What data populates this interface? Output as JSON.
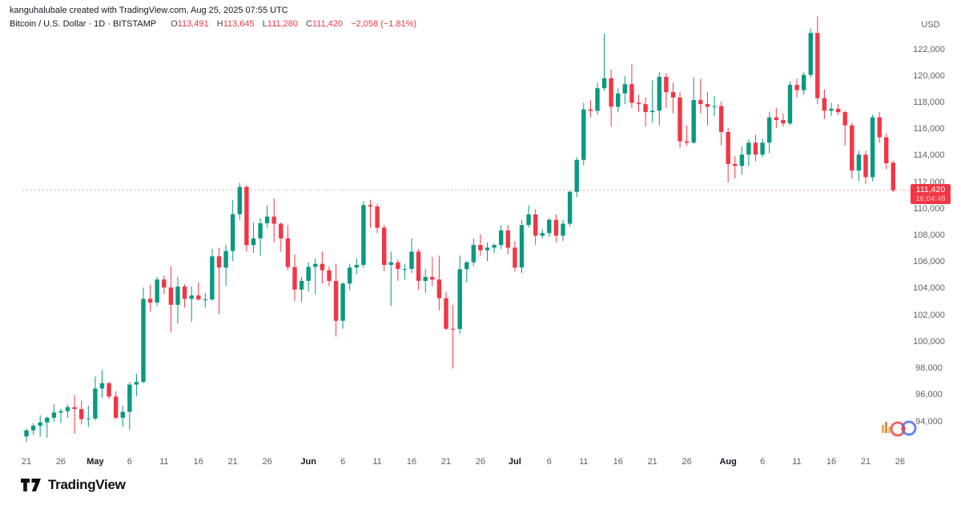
{
  "header": {
    "attribution": "kanguhalubale created with TradingView.com, Aug 25, 2025 07:55 UTC",
    "symbol": "Bitcoin / U.S. Dollar",
    "interval": "1D",
    "exchange": "BITSTAMP",
    "separator": "·"
  },
  "ohlc": {
    "open": {
      "label": "O",
      "value": "113,491"
    },
    "high": {
      "label": "H",
      "value": "113,645"
    },
    "low": {
      "label": "L",
      "value": "111,280"
    },
    "close": {
      "label": "C",
      "value": "111,420"
    },
    "change": "−2,058 (−1.81%)"
  },
  "price_scale": {
    "currency": "USD",
    "ticks": [
      {
        "label": "122,000",
        "value": 122000
      },
      {
        "label": "120,000",
        "value": 120000
      },
      {
        "label": "118,000",
        "value": 118000
      },
      {
        "label": "116,000",
        "value": 116000
      },
      {
        "label": "114,000",
        "value": 114000
      },
      {
        "label": "112,000",
        "value": 112000
      },
      {
        "label": "110,000",
        "value": 110000
      },
      {
        "label": "108,000",
        "value": 108000
      },
      {
        "label": "106,000",
        "value": 106000
      },
      {
        "label": "104,000",
        "value": 104000
      },
      {
        "label": "102,000",
        "value": 102000
      },
      {
        "label": "100,000",
        "value": 100000
      },
      {
        "label": "98,000",
        "value": 98000
      },
      {
        "label": "96,000",
        "value": 96000
      },
      {
        "label": "94,000",
        "value": 94000
      }
    ]
  },
  "time_scale": {
    "labels": [
      {
        "label": "21",
        "day": 0,
        "bold": false
      },
      {
        "label": "26",
        "day": 5,
        "bold": false
      },
      {
        "label": "May",
        "day": 10,
        "bold": true
      },
      {
        "label": "6",
        "day": 15,
        "bold": false
      },
      {
        "label": "11",
        "day": 20,
        "bold": false
      },
      {
        "label": "16",
        "day": 25,
        "bold": false
      },
      {
        "label": "21",
        "day": 30,
        "bold": false
      },
      {
        "label": "26",
        "day": 35,
        "bold": false
      },
      {
        "label": "Jun",
        "day": 41,
        "bold": true
      },
      {
        "label": "6",
        "day": 46,
        "bold": false
      },
      {
        "label": "11",
        "day": 51,
        "bold": false
      },
      {
        "label": "16",
        "day": 56,
        "bold": false
      },
      {
        "label": "21",
        "day": 61,
        "bold": false
      },
      {
        "label": "26",
        "day": 66,
        "bold": false
      },
      {
        "label": "Jul",
        "day": 71,
        "bold": true
      },
      {
        "label": "6",
        "day": 76,
        "bold": false
      },
      {
        "label": "11",
        "day": 81,
        "bold": false
      },
      {
        "label": "16",
        "day": 86,
        "bold": false
      },
      {
        "label": "21",
        "day": 91,
        "bold": false
      },
      {
        "label": "26",
        "day": 96,
        "bold": false
      },
      {
        "label": "Aug",
        "day": 102,
        "bold": true
      },
      {
        "label": "6",
        "day": 107,
        "bold": false
      },
      {
        "label": "11",
        "day": 112,
        "bold": false
      },
      {
        "label": "16",
        "day": 117,
        "bold": false
      },
      {
        "label": "21",
        "day": 122,
        "bold": false
      },
      {
        "label": "26",
        "day": 127,
        "bold": false
      }
    ]
  },
  "price_badge": {
    "price": "111,420",
    "countdown": "16:04:48"
  },
  "footer": {
    "logo_text": "TradingView"
  },
  "colors": {
    "up": "#089981",
    "down": "#f23645",
    "badge": "#f23645",
    "axis_text": "#5d606b"
  },
  "chart_data": {
    "type": "candlestick",
    "title": "Bitcoin / U.S. Dollar",
    "exchange": "BITSTAMP",
    "interval": "1D",
    "ylabel": "USD",
    "ylim": [
      94000,
      122000
    ],
    "grid": false,
    "last_price": 111420,
    "candles_format": [
      "date",
      "open",
      "high",
      "low",
      "close"
    ],
    "candles": [
      [
        "04-21",
        92900,
        93500,
        92500,
        93350
      ],
      [
        "04-22",
        93350,
        93900,
        93000,
        93700
      ],
      [
        "04-23",
        93700,
        94500,
        92900,
        93950
      ],
      [
        "04-24",
        93950,
        94400,
        92800,
        94300
      ],
      [
        "04-25",
        94300,
        95300,
        94000,
        94700
      ],
      [
        "04-26",
        94700,
        95000,
        93900,
        94800
      ],
      [
        "04-27",
        94800,
        95300,
        94300,
        95100
      ],
      [
        "04-28",
        95100,
        96000,
        93100,
        94950
      ],
      [
        "04-29",
        94950,
        95600,
        93800,
        94200
      ],
      [
        "04-30",
        94200,
        95200,
        93600,
        94250
      ],
      [
        "05-01",
        94250,
        97400,
        94100,
        96500
      ],
      [
        "05-02",
        96500,
        97900,
        95800,
        96900
      ],
      [
        "05-03",
        96900,
        97000,
        95700,
        95900
      ],
      [
        "05-04",
        95900,
        96300,
        94200,
        94300
      ],
      [
        "05-05",
        94300,
        95200,
        93600,
        94750
      ],
      [
        "05-06",
        94750,
        97000,
        93400,
        96800
      ],
      [
        "05-07",
        96800,
        97600,
        95900,
        97000
      ],
      [
        "05-08",
        97000,
        104100,
        96900,
        103250
      ],
      [
        "05-09",
        103250,
        104300,
        102300,
        102970
      ],
      [
        "05-10",
        102970,
        104900,
        102700,
        104700
      ],
      [
        "05-11",
        104700,
        105000,
        103600,
        104100
      ],
      [
        "05-12",
        104100,
        105700,
        100700,
        102800
      ],
      [
        "05-13",
        102800,
        104900,
        101400,
        104170
      ],
      [
        "05-14",
        104170,
        104350,
        102600,
        103250
      ],
      [
        "05-15",
        103250,
        104200,
        101500,
        103500
      ],
      [
        "05-16",
        103500,
        104500,
        103100,
        103200
      ],
      [
        "05-17",
        103200,
        103700,
        102600,
        103200
      ],
      [
        "05-18",
        103200,
        107000,
        103100,
        106450
      ],
      [
        "05-19",
        106450,
        107100,
        102100,
        105600
      ],
      [
        "05-20",
        105600,
        107300,
        104200,
        106850
      ],
      [
        "05-21",
        106850,
        110700,
        106100,
        109620
      ],
      [
        "05-22",
        109620,
        111980,
        109200,
        111670
      ],
      [
        "05-23",
        111670,
        111800,
        106800,
        107290
      ],
      [
        "05-24",
        107290,
        109000,
        106700,
        107800
      ],
      [
        "05-25",
        107800,
        109300,
        106500,
        108940
      ],
      [
        "05-26",
        108940,
        110300,
        108600,
        109440
      ],
      [
        "05-27",
        109440,
        110800,
        107500,
        108900
      ],
      [
        "05-28",
        108900,
        109000,
        106800,
        107800
      ],
      [
        "05-29",
        107800,
        108800,
        105400,
        105640
      ],
      [
        "05-30",
        105640,
        106600,
        103100,
        103950
      ],
      [
        "05-31",
        103950,
        104900,
        103000,
        104600
      ],
      [
        "06-01",
        104600,
        106000,
        103800,
        105650
      ],
      [
        "06-02",
        105650,
        106300,
        103600,
        105880
      ],
      [
        "06-03",
        105880,
        106800,
        104400,
        105400
      ],
      [
        "06-04",
        105400,
        105700,
        104200,
        104600
      ],
      [
        "06-05",
        104600,
        105900,
        100400,
        101600
      ],
      [
        "06-06",
        101600,
        104500,
        101000,
        104400
      ],
      [
        "06-07",
        104400,
        105900,
        103900,
        105600
      ],
      [
        "06-08",
        105600,
        106300,
        105100,
        105800
      ],
      [
        "06-09",
        105800,
        110600,
        105600,
        110300
      ],
      [
        "06-10",
        110300,
        110700,
        108600,
        110200
      ],
      [
        "06-11",
        110200,
        110400,
        108200,
        108600
      ],
      [
        "06-12",
        108600,
        108800,
        105300,
        105800
      ],
      [
        "06-13",
        105800,
        106800,
        102700,
        106000
      ],
      [
        "06-14",
        106000,
        106200,
        104600,
        105500
      ],
      [
        "06-15",
        105500,
        105900,
        104700,
        105500
      ],
      [
        "06-16",
        105500,
        107800,
        105200,
        106800
      ],
      [
        "06-17",
        106800,
        107000,
        103900,
        104600
      ],
      [
        "06-18",
        104600,
        105500,
        103700,
        104900
      ],
      [
        "06-19",
        104900,
        106400,
        104200,
        104700
      ],
      [
        "06-20",
        104700,
        106500,
        102400,
        103300
      ],
      [
        "06-21",
        103300,
        103800,
        100900,
        101000
      ],
      [
        "06-22",
        101000,
        102800,
        98000,
        100980
      ],
      [
        "06-23",
        100980,
        106500,
        100600,
        105480
      ],
      [
        "06-24",
        105480,
        106100,
        104500,
        106000
      ],
      [
        "06-25",
        106000,
        107800,
        105700,
        107300
      ],
      [
        "06-26",
        107300,
        108100,
        106500,
        106900
      ],
      [
        "06-27",
        106900,
        107500,
        106100,
        107100
      ],
      [
        "06-28",
        107100,
        107400,
        106700,
        107300
      ],
      [
        "06-29",
        107300,
        108800,
        107000,
        108400
      ],
      [
        "06-30",
        108400,
        108800,
        106600,
        107100
      ],
      [
        "07-01",
        107100,
        107600,
        105300,
        105600
      ],
      [
        "07-02",
        105600,
        109200,
        105200,
        108800
      ],
      [
        "07-03",
        108800,
        110300,
        108600,
        109600
      ],
      [
        "07-04",
        109600,
        110000,
        107300,
        108000
      ],
      [
        "07-05",
        108000,
        108500,
        107800,
        108200
      ],
      [
        "07-06",
        108200,
        109300,
        107900,
        109200
      ],
      [
        "07-07",
        109200,
        109600,
        107500,
        108000
      ],
      [
        "07-08",
        108000,
        109200,
        107600,
        108900
      ],
      [
        "07-09",
        108900,
        111400,
        108700,
        111300
      ],
      [
        "07-10",
        111300,
        113900,
        110900,
        113700
      ],
      [
        "07-11",
        113700,
        118000,
        113300,
        117500
      ],
      [
        "07-12",
        117500,
        118200,
        116900,
        117400
      ],
      [
        "07-13",
        117400,
        119500,
        117100,
        119100
      ],
      [
        "07-14",
        119100,
        123200,
        118900,
        119850
      ],
      [
        "07-15",
        119850,
        120500,
        116200,
        117700
      ],
      [
        "07-16",
        117700,
        119100,
        117300,
        118700
      ],
      [
        "07-17",
        118700,
        120000,
        117900,
        119400
      ],
      [
        "07-18",
        119400,
        120900,
        117600,
        118000
      ],
      [
        "07-19",
        118000,
        118600,
        117300,
        117900
      ],
      [
        "07-20",
        117900,
        118400,
        116200,
        117300
      ],
      [
        "07-21",
        117300,
        119700,
        116500,
        117400
      ],
      [
        "07-22",
        117400,
        120300,
        116300,
        119950
      ],
      [
        "07-23",
        119950,
        120200,
        117600,
        118800
      ],
      [
        "07-24",
        118800,
        119500,
        117200,
        118400
      ],
      [
        "07-25",
        118400,
        118800,
        114600,
        115100
      ],
      [
        "07-26",
        115100,
        116300,
        114800,
        115000
      ],
      [
        "07-27",
        115000,
        119900,
        114900,
        118200
      ],
      [
        "07-28",
        118200,
        119800,
        117200,
        117900
      ],
      [
        "07-29",
        117900,
        118800,
        116300,
        117700
      ],
      [
        "07-30",
        117700,
        118500,
        117000,
        117750
      ],
      [
        "07-31",
        117750,
        118100,
        114800,
        115800
      ],
      [
        "08-01",
        115800,
        116100,
        112000,
        113400
      ],
      [
        "08-02",
        113400,
        114000,
        112300,
        113250
      ],
      [
        "08-03",
        113250,
        114700,
        112600,
        114100
      ],
      [
        "08-04",
        114100,
        115250,
        113200,
        115000
      ],
      [
        "08-05",
        115000,
        115600,
        113600,
        114100
      ],
      [
        "08-06",
        114100,
        115300,
        113900,
        115000
      ],
      [
        "08-07",
        115000,
        117300,
        114200,
        116900
      ],
      [
        "08-08",
        116900,
        117600,
        116100,
        116700
      ],
      [
        "08-09",
        116700,
        117200,
        116200,
        116450
      ],
      [
        "08-10",
        116450,
        119600,
        116300,
        119350
      ],
      [
        "08-11",
        119350,
        119800,
        118400,
        118950
      ],
      [
        "08-12",
        118950,
        120300,
        118600,
        120100
      ],
      [
        "08-13",
        120100,
        123600,
        119900,
        123250
      ],
      [
        "08-14",
        123250,
        124500,
        117900,
        118350
      ],
      [
        "08-15",
        118350,
        119000,
        116800,
        117400
      ],
      [
        "08-16",
        117400,
        118000,
        117000,
        117550
      ],
      [
        "08-17",
        117550,
        117900,
        117100,
        117300
      ],
      [
        "08-18",
        117300,
        117400,
        114800,
        116300
      ],
      [
        "08-19",
        116300,
        116500,
        112300,
        112900
      ],
      [
        "08-20",
        112900,
        114400,
        112100,
        114100
      ],
      [
        "08-21",
        114100,
        114400,
        111900,
        112400
      ],
      [
        "08-22",
        112400,
        117100,
        112100,
        116900
      ],
      [
        "08-23",
        116900,
        117300,
        115000,
        115400
      ],
      [
        "08-24",
        115400,
        115700,
        113000,
        113450
      ],
      [
        "08-25",
        113491,
        113645,
        111280,
        111420
      ]
    ]
  }
}
